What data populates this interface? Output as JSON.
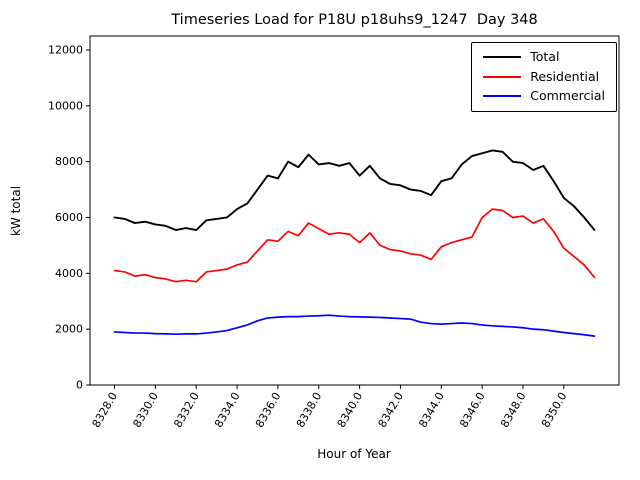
{
  "chart_data": {
    "type": "line",
    "title": "Timeseries Load for P18U p18uhs9_1247  Day 348",
    "xlabel": "Hour of Year",
    "ylabel": "kW total",
    "grid": false,
    "legend_position": "upper right",
    "xlim": [
      8326.8,
      8352.7
    ],
    "ylim": [
      0,
      12500
    ],
    "x_ticks": {
      "values": [
        8328,
        8330,
        8332,
        8334,
        8336,
        8338,
        8340,
        8342,
        8344,
        8346,
        8348,
        8350
      ],
      "labels": [
        "8328.0",
        "8330.0",
        "8332.0",
        "8334.0",
        "8336.0",
        "8338.0",
        "8340.0",
        "8342.0",
        "8344.0",
        "8346.0",
        "8348.0",
        "8350.0"
      ]
    },
    "y_ticks": {
      "values": [
        0,
        2000,
        4000,
        6000,
        8000,
        10000,
        12000
      ],
      "labels": [
        "0",
        "2000",
        "4000",
        "6000",
        "8000",
        "10000",
        "12000"
      ]
    },
    "x": [
      8328.0,
      8328.5,
      8329.0,
      8329.5,
      8330.0,
      8330.5,
      8331.0,
      8331.5,
      8332.0,
      8332.5,
      8333.0,
      8333.5,
      8334.0,
      8334.5,
      8335.0,
      8335.5,
      8336.0,
      8336.5,
      8337.0,
      8337.5,
      8338.0,
      8338.5,
      8339.0,
      8339.5,
      8340.0,
      8340.5,
      8341.0,
      8341.5,
      8342.0,
      8342.5,
      8343.0,
      8343.5,
      8344.0,
      8344.5,
      8345.0,
      8345.5,
      8346.0,
      8346.5,
      8347.0,
      8347.5,
      8348.0,
      8348.5,
      8349.0,
      8349.5,
      8350.0,
      8350.5,
      8351.0,
      8351.5
    ],
    "series": [
      {
        "name": "Total",
        "color": "#000000",
        "values": [
          6000,
          5950,
          5800,
          5850,
          5750,
          5700,
          5550,
          5620,
          5550,
          5900,
          5950,
          6000,
          6300,
          6500,
          7000,
          7500,
          7400,
          8000,
          7800,
          8250,
          7900,
          7950,
          7850,
          7950,
          7500,
          7850,
          7400,
          7200,
          7150,
          7000,
          6950,
          6800,
          7300,
          7400,
          7900,
          8200,
          8300,
          8400,
          8350,
          8000,
          7950,
          7700,
          7850,
          7300,
          6700,
          6400,
          6000,
          5550
        ]
      },
      {
        "name": "Residential",
        "color": "#ff0000",
        "values": [
          4100,
          4050,
          3900,
          3950,
          3850,
          3800,
          3700,
          3750,
          3700,
          4050,
          4100,
          4150,
          4300,
          4400,
          4800,
          5200,
          5150,
          5500,
          5350,
          5800,
          5600,
          5400,
          5450,
          5400,
          5100,
          5450,
          5000,
          4850,
          4800,
          4700,
          4650,
          4500,
          4950,
          5100,
          5200,
          5300,
          6000,
          6300,
          6250,
          6000,
          6050,
          5800,
          5950,
          5500,
          4900,
          4600,
          4300,
          3850
        ]
      },
      {
        "name": "Commercial",
        "color": "#0000ff",
        "values": [
          1900,
          1880,
          1860,
          1860,
          1840,
          1830,
          1820,
          1830,
          1830,
          1860,
          1900,
          1950,
          2050,
          2150,
          2300,
          2400,
          2430,
          2450,
          2450,
          2470,
          2480,
          2500,
          2470,
          2450,
          2440,
          2430,
          2420,
          2400,
          2380,
          2360,
          2250,
          2200,
          2180,
          2200,
          2220,
          2200,
          2150,
          2120,
          2100,
          2080,
          2050,
          2000,
          1980,
          1930,
          1880,
          1840,
          1800,
          1750
        ]
      }
    ]
  }
}
